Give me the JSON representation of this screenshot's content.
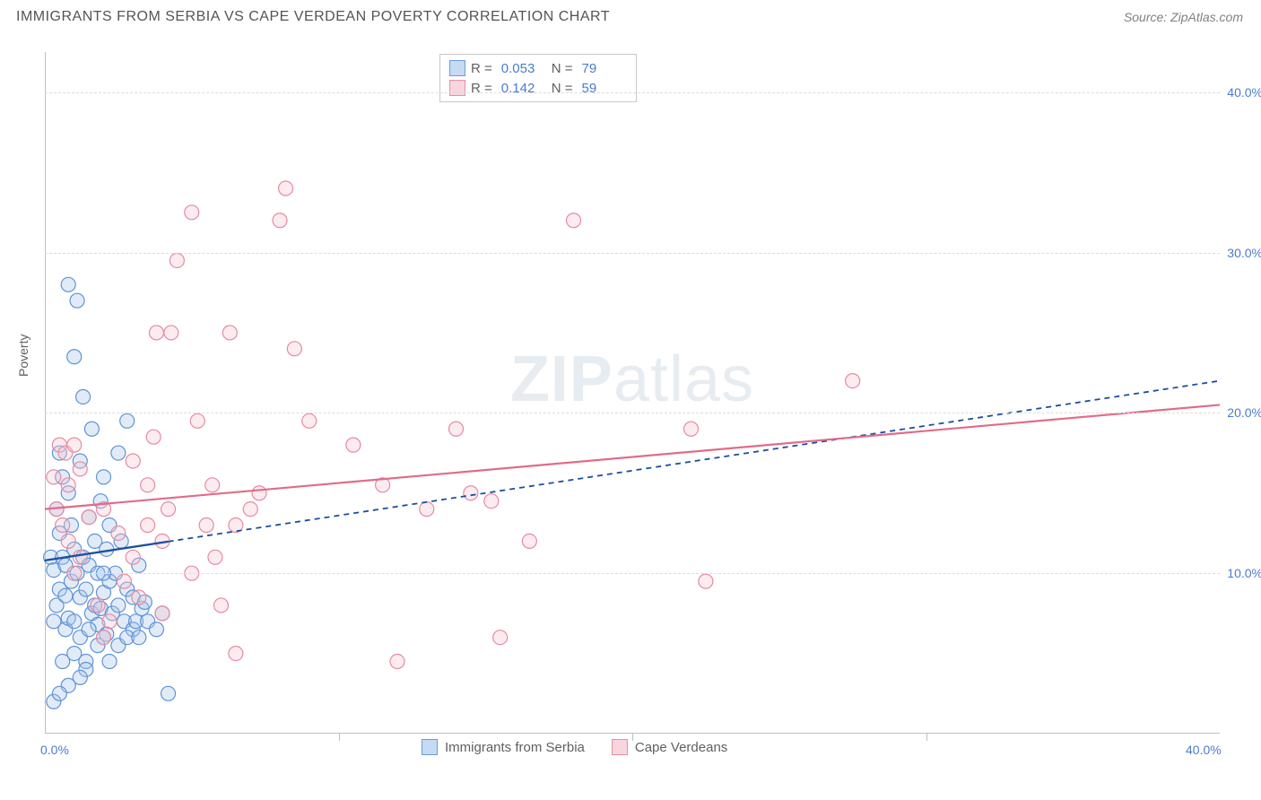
{
  "header": {
    "title": "IMMIGRANTS FROM SERBIA VS CAPE VERDEAN POVERTY CORRELATION CHART",
    "source": "Source: ZipAtlas.com"
  },
  "watermark": {
    "bold": "ZIP",
    "light": "atlas"
  },
  "chart": {
    "type": "scatter",
    "ylabel": "Poverty",
    "background_color": "#ffffff",
    "grid_color": "#dcdcdc",
    "axis_color": "#bfbfbf",
    "tick_label_color": "#4a7bd0",
    "label_color": "#606060",
    "xlim": [
      0,
      40
    ],
    "ylim": [
      0,
      42.5
    ],
    "xticks": [
      0,
      10,
      20,
      30,
      40
    ],
    "xtick_labels": [
      "0.0%",
      "",
      "",
      "",
      "40.0%"
    ],
    "yticks": [
      10,
      20,
      30,
      40
    ],
    "ytick_labels": [
      "10.0%",
      "20.0%",
      "30.0%",
      "40.0%"
    ],
    "marker_radius": 8,
    "marker_fill_opacity": 0.35,
    "marker_stroke_width": 1.2,
    "series": [
      {
        "name": "Immigrants from Serbia",
        "color_fill": "#a9c7ec",
        "color_stroke": "#5f93d4",
        "legend_swatch_fill": "#c5daf3",
        "legend_swatch_stroke": "#6a9cd8",
        "R": "0.053",
        "N": "79",
        "points": [
          [
            0.2,
            11.0
          ],
          [
            0.3,
            10.2
          ],
          [
            0.3,
            7.0
          ],
          [
            0.4,
            8.0
          ],
          [
            0.4,
            14.0
          ],
          [
            0.5,
            12.5
          ],
          [
            0.5,
            9.0
          ],
          [
            0.5,
            17.5
          ],
          [
            0.6,
            11.0
          ],
          [
            0.6,
            16.0
          ],
          [
            0.7,
            8.6
          ],
          [
            0.7,
            10.5
          ],
          [
            0.7,
            6.5
          ],
          [
            0.8,
            7.2
          ],
          [
            0.8,
            15.0
          ],
          [
            0.8,
            28.0
          ],
          [
            0.9,
            13.0
          ],
          [
            0.9,
            9.5
          ],
          [
            1.0,
            11.5
          ],
          [
            1.0,
            7.0
          ],
          [
            1.0,
            23.5
          ],
          [
            1.1,
            10.0
          ],
          [
            1.1,
            27.0
          ],
          [
            1.2,
            8.5
          ],
          [
            1.2,
            17.0
          ],
          [
            1.2,
            6.0
          ],
          [
            1.3,
            11.0
          ],
          [
            1.3,
            21.0
          ],
          [
            1.4,
            9.0
          ],
          [
            1.4,
            4.5
          ],
          [
            1.5,
            10.5
          ],
          [
            1.5,
            13.5
          ],
          [
            1.6,
            7.5
          ],
          [
            1.6,
            19.0
          ],
          [
            1.7,
            8.0
          ],
          [
            1.7,
            12.0
          ],
          [
            1.8,
            6.8
          ],
          [
            1.8,
            10.0
          ],
          [
            1.9,
            14.5
          ],
          [
            1.9,
            7.8
          ],
          [
            2.0,
            8.8
          ],
          [
            2.0,
            16.0
          ],
          [
            2.1,
            11.5
          ],
          [
            2.1,
            6.2
          ],
          [
            2.2,
            9.5
          ],
          [
            2.2,
            13.0
          ],
          [
            2.3,
            7.5
          ],
          [
            2.4,
            10.0
          ],
          [
            2.5,
            8.0
          ],
          [
            2.5,
            17.5
          ],
          [
            2.6,
            12.0
          ],
          [
            2.7,
            7.0
          ],
          [
            2.8,
            9.0
          ],
          [
            2.8,
            19.5
          ],
          [
            3.0,
            8.5
          ],
          [
            3.0,
            6.5
          ],
          [
            3.1,
            7.0
          ],
          [
            3.2,
            10.5
          ],
          [
            3.3,
            7.8
          ],
          [
            3.4,
            8.2
          ],
          [
            0.3,
            2.0
          ],
          [
            1.0,
            5.0
          ],
          [
            1.4,
            4.0
          ],
          [
            1.8,
            5.5
          ],
          [
            2.0,
            6.0
          ],
          [
            2.5,
            5.5
          ],
          [
            3.5,
            7.0
          ],
          [
            3.8,
            6.5
          ],
          [
            4.0,
            7.5
          ],
          [
            4.2,
            2.5
          ],
          [
            1.2,
            3.5
          ],
          [
            0.8,
            3.0
          ],
          [
            2.2,
            4.5
          ],
          [
            2.8,
            6.0
          ],
          [
            0.6,
            4.5
          ],
          [
            1.5,
            6.5
          ],
          [
            3.2,
            6.0
          ],
          [
            0.5,
            2.5
          ],
          [
            2.0,
            10.0
          ]
        ],
        "trendline": {
          "x1": 0,
          "y1": 10.8,
          "x2": 40,
          "y2": 22.0,
          "stroke": "#1b4f9c",
          "dash": "6 5",
          "width": 1.8,
          "solid_end_x": 4.2
        }
      },
      {
        "name": "Cape Verdeans",
        "color_fill": "#f5c6d2",
        "color_stroke": "#e48ba3",
        "legend_swatch_fill": "#f9d5de",
        "legend_swatch_stroke": "#e68fa6",
        "R": "0.142",
        "N": "59",
        "points": [
          [
            0.3,
            16.0
          ],
          [
            0.4,
            14.0
          ],
          [
            0.5,
            18.0
          ],
          [
            0.6,
            13.0
          ],
          [
            0.7,
            17.5
          ],
          [
            0.8,
            12.0
          ],
          [
            0.8,
            15.5
          ],
          [
            1.0,
            10.0
          ],
          [
            1.0,
            18.0
          ],
          [
            1.2,
            11.0
          ],
          [
            1.2,
            16.5
          ],
          [
            1.5,
            13.5
          ],
          [
            1.8,
            8.0
          ],
          [
            2.0,
            14.0
          ],
          [
            2.2,
            7.0
          ],
          [
            2.5,
            12.5
          ],
          [
            2.7,
            9.5
          ],
          [
            3.0,
            17.0
          ],
          [
            3.2,
            8.5
          ],
          [
            3.5,
            13.0
          ],
          [
            3.5,
            15.5
          ],
          [
            3.7,
            18.5
          ],
          [
            3.8,
            25.0
          ],
          [
            4.0,
            7.5
          ],
          [
            4.2,
            14.0
          ],
          [
            4.3,
            25.0
          ],
          [
            4.5,
            29.5
          ],
          [
            5.0,
            32.5
          ],
          [
            5.2,
            19.5
          ],
          [
            5.5,
            13.0
          ],
          [
            5.7,
            15.5
          ],
          [
            5.8,
            11.0
          ],
          [
            6.0,
            8.0
          ],
          [
            6.3,
            25.0
          ],
          [
            6.5,
            5.0
          ],
          [
            7.0,
            14.0
          ],
          [
            7.3,
            15.0
          ],
          [
            8.0,
            32.0
          ],
          [
            8.2,
            34.0
          ],
          [
            8.5,
            24.0
          ],
          [
            9.0,
            19.5
          ],
          [
            10.5,
            18.0
          ],
          [
            11.5,
            15.5
          ],
          [
            12.0,
            4.5
          ],
          [
            13.0,
            14.0
          ],
          [
            14.0,
            19.0
          ],
          [
            14.5,
            15.0
          ],
          [
            15.2,
            14.5
          ],
          [
            15.5,
            6.0
          ],
          [
            16.5,
            12.0
          ],
          [
            18.0,
            32.0
          ],
          [
            22.0,
            19.0
          ],
          [
            22.5,
            9.5
          ],
          [
            27.5,
            22.0
          ],
          [
            4.0,
            12.0
          ],
          [
            5.0,
            10.0
          ],
          [
            6.5,
            13.0
          ],
          [
            2.0,
            6.0
          ],
          [
            3.0,
            11.0
          ]
        ],
        "trendline": {
          "x1": 0,
          "y1": 14.0,
          "x2": 40,
          "y2": 20.5,
          "stroke": "#e06c8a",
          "dash": "none",
          "width": 2.2
        }
      }
    ]
  },
  "legend_top": {
    "label_R": "R =",
    "label_N": "N ="
  },
  "legend_bottom": {
    "items": [
      {
        "label": "Immigrants from Serbia"
      },
      {
        "label": "Cape Verdeans"
      }
    ]
  }
}
